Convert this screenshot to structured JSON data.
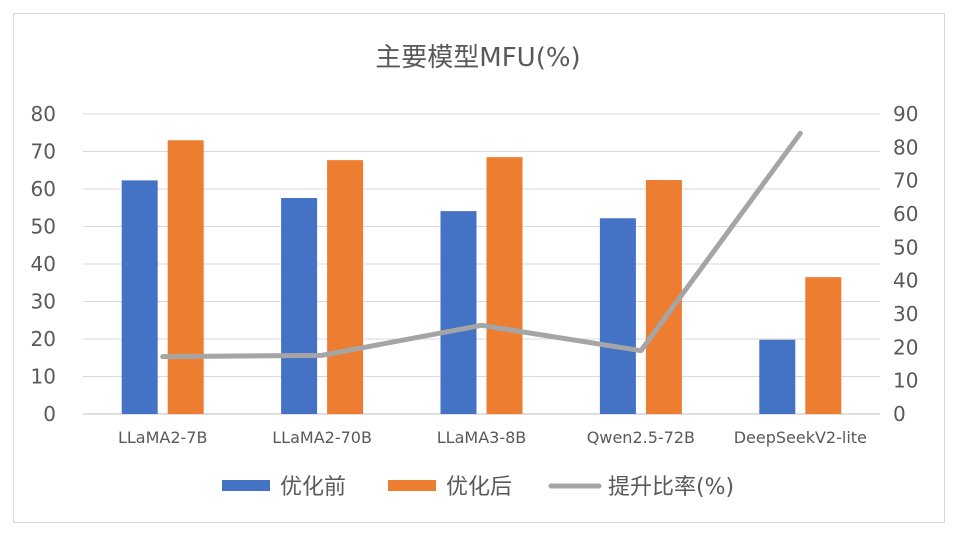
{
  "chart_data": {
    "type": "bar+line",
    "title": "主要模型MFU(%)",
    "categories": [
      "LLaMA2-7B",
      "LLaMA2-70B",
      "LLaMA3-8B",
      "Qwen2.5-72B",
      "DeepSeekV2-lite"
    ],
    "series": [
      {
        "name": "优化前",
        "type": "bar",
        "axis": "left",
        "color": "#4472C4",
        "values": [
          62.3,
          57.6,
          54.1,
          52.2,
          19.8
        ]
      },
      {
        "name": "优化后",
        "type": "bar",
        "axis": "left",
        "color": "#ED7D31",
        "values": [
          73.0,
          67.7,
          68.5,
          62.4,
          36.5
        ]
      },
      {
        "name": "提升比率(%)",
        "type": "line",
        "axis": "right",
        "color": "#A5A5A5",
        "values": [
          17.2,
          17.6,
          26.6,
          19.0,
          84.2
        ]
      }
    ],
    "y_left": {
      "min": 0,
      "max": 80,
      "ticks": [
        0,
        10,
        20,
        30,
        40,
        50,
        60,
        70,
        80
      ]
    },
    "y_right": {
      "min": 0,
      "max": 90,
      "ticks": [
        0,
        10,
        20,
        30,
        40,
        50,
        60,
        70,
        80,
        90
      ]
    },
    "grid": true,
    "legend_position": "bottom"
  }
}
